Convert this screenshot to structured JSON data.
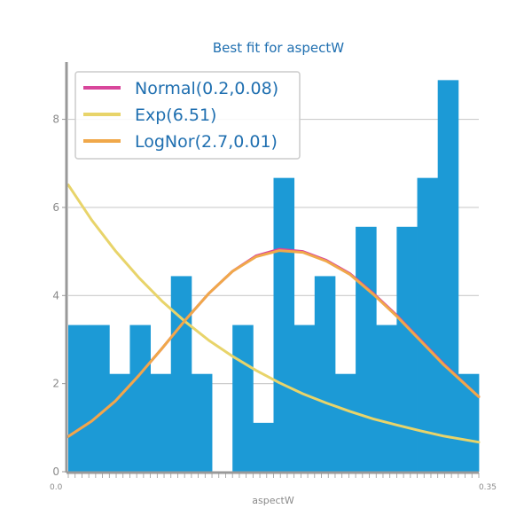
{
  "chart_data": {
    "type": "bar",
    "title": "Best fit for aspectW",
    "xlabel": "aspectW",
    "ylabel": "",
    "x_range": [
      0.0,
      0.35
    ],
    "ylim": [
      0,
      9.3
    ],
    "yticks": [
      0,
      2,
      4,
      6,
      8
    ],
    "xtick_labels_visible": [
      "0.0",
      "0.35"
    ],
    "grid": true,
    "legend_position": "top-left",
    "histogram": {
      "bin_count": 20,
      "color": "#1c9ad6",
      "values": [
        3.33,
        3.33,
        2.22,
        3.33,
        2.22,
        4.44,
        2.22,
        0.0,
        3.33,
        1.11,
        6.67,
        3.33,
        4.44,
        2.22,
        5.56,
        3.33,
        5.56,
        6.67,
        8.89,
        2.22
      ]
    },
    "series": [
      {
        "name": "Normal(0.2,0.08)",
        "color": "#d8469b",
        "x": [
          0.0,
          0.02,
          0.04,
          0.06,
          0.08,
          0.1,
          0.12,
          0.14,
          0.16,
          0.18,
          0.2,
          0.22,
          0.24,
          0.26,
          0.28,
          0.3,
          0.32,
          0.35
        ],
        "y": [
          0.8,
          1.15,
          1.6,
          2.18,
          2.8,
          3.45,
          4.05,
          4.55,
          4.9,
          5.05,
          5.0,
          4.8,
          4.5,
          4.05,
          3.55,
          3.0,
          2.45,
          1.7
        ]
      },
      {
        "name": "Exp(6.51)",
        "color": "#e8d46a",
        "x": [
          0.0,
          0.02,
          0.04,
          0.06,
          0.08,
          0.1,
          0.12,
          0.14,
          0.16,
          0.18,
          0.2,
          0.22,
          0.24,
          0.26,
          0.28,
          0.3,
          0.32,
          0.35
        ],
        "y": [
          6.51,
          5.71,
          5.02,
          4.41,
          3.87,
          3.4,
          2.98,
          2.62,
          2.3,
          2.02,
          1.77,
          1.56,
          1.37,
          1.2,
          1.06,
          0.93,
          0.81,
          0.67
        ]
      },
      {
        "name": "LogNor(2.7,0.01)",
        "color": "#f0a84a",
        "x": [
          0.0,
          0.02,
          0.04,
          0.06,
          0.08,
          0.1,
          0.12,
          0.14,
          0.16,
          0.18,
          0.2,
          0.22,
          0.24,
          0.26,
          0.28,
          0.3,
          0.32,
          0.35
        ],
        "y": [
          0.8,
          1.15,
          1.6,
          2.18,
          2.8,
          3.45,
          4.05,
          4.55,
          4.88,
          5.02,
          4.98,
          4.78,
          4.48,
          4.03,
          3.53,
          2.98,
          2.43,
          1.7
        ]
      }
    ]
  }
}
